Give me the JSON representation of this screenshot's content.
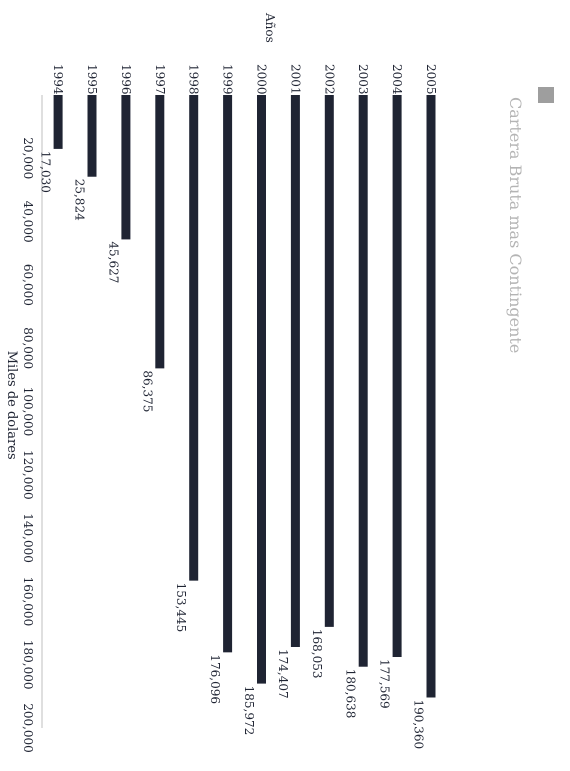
{
  "chart_data": {
    "type": "bar",
    "orientation": "horizontal",
    "rotated": "90deg clockwise",
    "categories": [
      "1994",
      "1995",
      "1996",
      "1997",
      "1998",
      "1999",
      "2000",
      "2001",
      "2002",
      "2003",
      "2004",
      "2005"
    ],
    "series": [
      {
        "name": "Cartera Bruta mas Contingente",
        "values": [
          17030,
          25824,
          45627,
          86375,
          153445,
          176096,
          185972,
          174407,
          168053,
          180638,
          177569,
          190360
        ]
      }
    ],
    "data_labels": [
      "17,030",
      "25,824",
      "45,627",
      "86,375",
      "153,445",
      "176,096",
      "185,972",
      "174,407",
      "168,053",
      "180,638",
      "177,569",
      "190,360"
    ],
    "xlabel": "Miles de dolares",
    "ylabel": "Años",
    "ticks": [
      {
        "value": 20000,
        "label": "20,000"
      },
      {
        "value": 40000,
        "label": "40,000"
      },
      {
        "value": 60000,
        "label": "60,000"
      },
      {
        "value": 80000,
        "label": "80,000"
      },
      {
        "value": 100000,
        "label": "100,000"
      },
      {
        "value": 120000,
        "label": "120,000"
      },
      {
        "value": 140000,
        "label": "140,000"
      },
      {
        "value": 160000,
        "label": "160,000"
      },
      {
        "value": 180000,
        "label": "180,000"
      },
      {
        "value": 200000,
        "label": "200,000"
      }
    ],
    "xlim": [
      0,
      200000
    ],
    "grid": false,
    "legend": {
      "position": "top-right",
      "label": "Cartera Bruta mas Contingente"
    },
    "colors": {
      "bar": "#1f2433",
      "legend_swatch": "#9e9e9e",
      "legend_text": "#b4b4b4",
      "text": "#1f2433"
    }
  }
}
